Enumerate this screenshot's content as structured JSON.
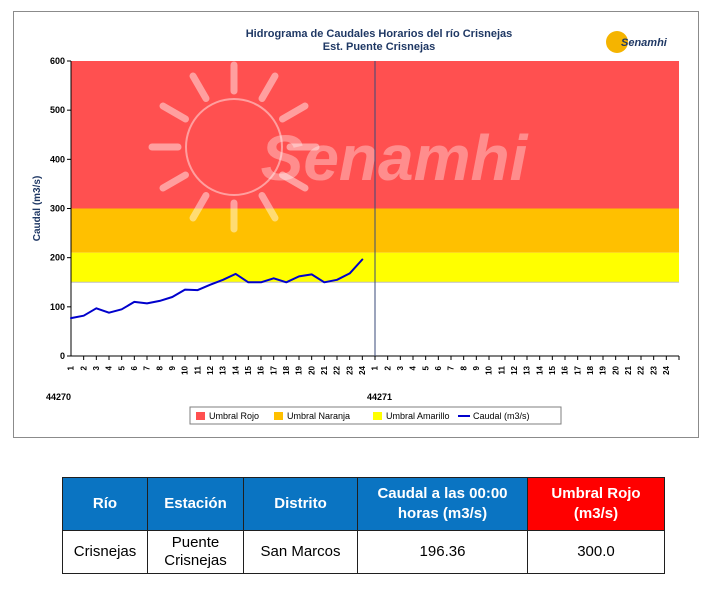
{
  "chart_data": {
    "type": "line",
    "title": "Hidrograma de Caudales Horarios del río Crisnejas",
    "subtitle": "Est. Puente Crisnejas",
    "ylabel": "Caudal  (m3/s)",
    "ylim": [
      0,
      600
    ],
    "yticks": [
      0,
      100,
      200,
      300,
      400,
      500,
      600
    ],
    "x_hour_labels": [
      "1",
      "2",
      "3",
      "4",
      "5",
      "6",
      "7",
      "8",
      "9",
      "10",
      "11",
      "12",
      "13",
      "14",
      "15",
      "16",
      "17",
      "18",
      "19",
      "20",
      "21",
      "22",
      "23",
      "24"
    ],
    "x_day_labels": [
      "44270",
      "44271"
    ],
    "threshold_bands": [
      {
        "name": "Umbral Rojo",
        "from": 300,
        "to": 600,
        "color": "#ff5050"
      },
      {
        "name": "Umbral Naranja",
        "from": 210,
        "to": 300,
        "color": "#ffc000"
      },
      {
        "name": "Umbral Amarillo",
        "from": 150,
        "to": 210,
        "color": "#ffff00"
      }
    ],
    "series": [
      {
        "name": "Caudal (m3/s)",
        "color": "#0000cc",
        "x": [
          0,
          1,
          2,
          3,
          4,
          5,
          6,
          7,
          8,
          9,
          10,
          11,
          12,
          13,
          14,
          15,
          16,
          17,
          18,
          19,
          20,
          21,
          22,
          23,
          24
        ],
        "values": [
          77,
          82,
          97,
          88,
          95,
          110,
          107,
          112,
          120,
          135,
          134,
          145,
          155,
          167,
          150,
          150,
          158,
          150,
          162,
          166,
          150,
          155,
          168,
          196.36,
          null
        ]
      }
    ],
    "watermark": "Senamhi",
    "logo_text": "Senamhi",
    "legend_position": "bottom"
  },
  "table": {
    "headers": [
      "Río",
      "Estación",
      "Distrito",
      "Caudal a las 00:00 horas (m3/s)",
      "Umbral Rojo (m3/s)"
    ],
    "rows": [
      [
        "Crisnejas",
        "Puente Crisnejas",
        "San Marcos",
        "196.36",
        "300.0"
      ]
    ],
    "header_color": "#0a74c2",
    "highlight_color": "#ff0000"
  }
}
